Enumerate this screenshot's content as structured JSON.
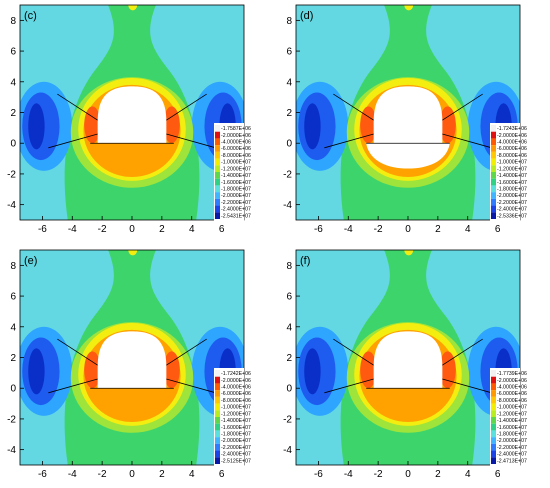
{
  "chart_data": [
    {
      "type": "heatmap",
      "label": "(c)",
      "xlim": [
        -7.5,
        7.5
      ],
      "ylim": [
        -5,
        9
      ],
      "xticks": [
        -6,
        -4,
        -2,
        0,
        2,
        4,
        6
      ],
      "yticks": [
        -4,
        -2,
        0,
        2,
        4,
        6,
        8
      ],
      "legend": [
        "-1.7587E+06",
        "-2.0000E+06",
        "-4.0000E+06",
        "-6.0000E+06",
        "-8.0000E+06",
        "-1.0000E+07",
        "-1.2000E+07",
        "-1.4000E+07",
        "-1.6000E+07",
        "-1.8000E+07",
        "-2.0000E+07",
        "-2.2000E+07",
        "-2.4000E+07",
        "-2.5431E+07"
      ],
      "legend_placement": "right",
      "floor_fill": "orange"
    },
    {
      "type": "heatmap",
      "label": "(d)",
      "xlim": [
        -7.5,
        7.5
      ],
      "ylim": [
        -5,
        9
      ],
      "xticks": [
        -6,
        -4,
        -2,
        0,
        2,
        4,
        6
      ],
      "yticks": [
        -4,
        -2,
        0,
        2,
        4,
        6,
        8
      ],
      "legend": [
        "-1.7243E+06",
        "-2.0000E+06",
        "-4.0000E+06",
        "-6.0000E+06",
        "-8.0000E+06",
        "-1.0000E+07",
        "-1.2000E+07",
        "-1.4000E+07",
        "-1.6000E+07",
        "-1.8000E+07",
        "-2.0000E+07",
        "-2.2000E+07",
        "-2.4000E+07",
        "-2.5336E+07"
      ],
      "legend_placement": "right",
      "floor_fill": "white"
    },
    {
      "type": "heatmap",
      "label": "(e)",
      "xlim": [
        -7.5,
        7.5
      ],
      "ylim": [
        -5,
        9
      ],
      "xticks": [
        -6,
        -4,
        -2,
        0,
        2,
        4,
        6
      ],
      "yticks": [
        -4,
        -2,
        0,
        2,
        4,
        6,
        8
      ],
      "legend": [
        "-1.7242E+06",
        "-2.0000E+06",
        "-4.0000E+06",
        "-6.0000E+06",
        "-8.0000E+06",
        "-1.0000E+07",
        "-1.2000E+07",
        "-1.4000E+07",
        "-1.6000E+07",
        "-1.8000E+07",
        "-2.0000E+07",
        "-2.2000E+07",
        "-2.4000E+07",
        "-2.5125E+07"
      ],
      "legend_placement": "right",
      "floor_fill": "orange"
    },
    {
      "type": "heatmap",
      "label": "(f)",
      "xlim": [
        -7.5,
        7.5
      ],
      "ylim": [
        -5,
        9
      ],
      "xticks": [
        -6,
        -4,
        -2,
        0,
        2,
        4,
        6
      ],
      "yticks": [
        -4,
        -2,
        0,
        2,
        4,
        6,
        8
      ],
      "legend": [
        "-1.7739E+06",
        "-2.0000E+06",
        "-4.0000E+06",
        "-6.0000E+06",
        "-8.0000E+06",
        "-1.0000E+07",
        "-1.2000E+07",
        "-1.4000E+07",
        "-1.6000E+07",
        "-1.8000E+07",
        "-2.0000E+07",
        "-2.2000E+07",
        "-2.4000E+07",
        "-2.4713E+07"
      ],
      "legend_placement": "right",
      "floor_fill": "orange"
    }
  ],
  "colors": {
    "legend_swatches": [
      "#f2f2f2",
      "#e01010",
      "#ff5a00",
      "#ff9a00",
      "#ffc800",
      "#f2f000",
      "#b8ee20",
      "#5ed84a",
      "#2fd184",
      "#5be0e0",
      "#3fb6ff",
      "#2f7cff",
      "#1a44e8",
      "#0a1aa8"
    ],
    "background_cyan": "#64d8e2",
    "green": "#3ed46c",
    "light_green": "#9ee43a",
    "yellow": "#f3ee10",
    "orange": "#ffa200",
    "red_orange": "#ff5a10",
    "light_blue": "#2ea6ff",
    "blue": "#1e5cf0",
    "deep_blue": "#0a2fc8"
  }
}
